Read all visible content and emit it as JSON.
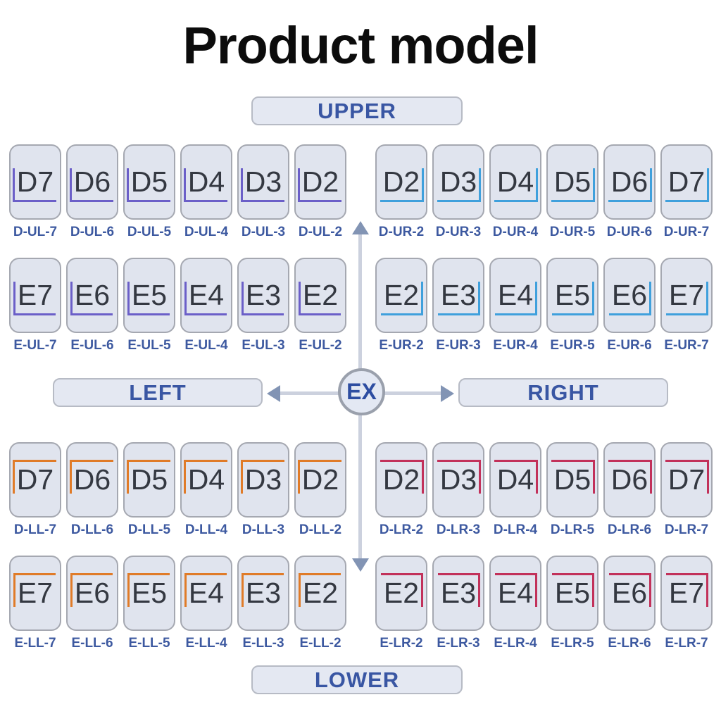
{
  "title": "Product model",
  "center": {
    "label": "EX"
  },
  "direction_labels": {
    "upper": "UPPER",
    "lower": "LOWER",
    "left": "LEFT",
    "right": "RIGHT"
  },
  "colors": {
    "bracket_upper_left": "#6b5fc8",
    "bracket_upper_right": "#3fa0dc",
    "bracket_lower_left": "#e07b28",
    "bracket_lower_right": "#c2315a",
    "label_blue": "#3d59a0",
    "arrow": "#8294b4"
  },
  "quadrants": [
    {
      "id": "upper-left",
      "bracket_corner": "bottom-left",
      "bracket_color": "#6b5fc8",
      "rows": [
        {
          "cards": [
            {
              "code": "D7",
              "label": "D-UL-7"
            },
            {
              "code": "D6",
              "label": "D-UL-6"
            },
            {
              "code": "D5",
              "label": "D-UL-5"
            },
            {
              "code": "D4",
              "label": "D-UL-4"
            },
            {
              "code": "D3",
              "label": "D-UL-3"
            },
            {
              "code": "D2",
              "label": "D-UL-2"
            }
          ]
        },
        {
          "cards": [
            {
              "code": "E7",
              "label": "E-UL-7"
            },
            {
              "code": "E6",
              "label": "E-UL-6"
            },
            {
              "code": "E5",
              "label": "E-UL-5"
            },
            {
              "code": "E4",
              "label": "E-UL-4"
            },
            {
              "code": "E3",
              "label": "E-UL-3"
            },
            {
              "code": "E2",
              "label": "E-UL-2"
            }
          ]
        }
      ]
    },
    {
      "id": "upper-right",
      "bracket_corner": "bottom-right",
      "bracket_color": "#3fa0dc",
      "rows": [
        {
          "cards": [
            {
              "code": "D2",
              "label": "D-UR-2"
            },
            {
              "code": "D3",
              "label": "D-UR-3"
            },
            {
              "code": "D4",
              "label": "D-UR-4"
            },
            {
              "code": "D5",
              "label": "D-UR-5"
            },
            {
              "code": "D6",
              "label": "D-UR-6"
            },
            {
              "code": "D7",
              "label": "D-UR-7"
            }
          ]
        },
        {
          "cards": [
            {
              "code": "E2",
              "label": "E-UR-2"
            },
            {
              "code": "E3",
              "label": "E-UR-3"
            },
            {
              "code": "E4",
              "label": "E-UR-4"
            },
            {
              "code": "E5",
              "label": "E-UR-5"
            },
            {
              "code": "E6",
              "label": "E-UR-6"
            },
            {
              "code": "E7",
              "label": "E-UR-7"
            }
          ]
        }
      ]
    },
    {
      "id": "lower-left",
      "bracket_corner": "top-left",
      "bracket_color": "#e07b28",
      "rows": [
        {
          "cards": [
            {
              "code": "D7",
              "label": "D-LL-7"
            },
            {
              "code": "D6",
              "label": "D-LL-6"
            },
            {
              "code": "D5",
              "label": "D-LL-5"
            },
            {
              "code": "D4",
              "label": "D-LL-4"
            },
            {
              "code": "D3",
              "label": "D-LL-3"
            },
            {
              "code": "D2",
              "label": "D-LL-2"
            }
          ]
        },
        {
          "cards": [
            {
              "code": "E7",
              "label": "E-LL-7"
            },
            {
              "code": "E6",
              "label": "E-LL-6"
            },
            {
              "code": "E5",
              "label": "E-LL-5"
            },
            {
              "code": "E4",
              "label": "E-LL-4"
            },
            {
              "code": "E3",
              "label": "E-LL-3"
            },
            {
              "code": "E2",
              "label": "E-LL-2"
            }
          ]
        }
      ]
    },
    {
      "id": "lower-right",
      "bracket_corner": "top-right",
      "bracket_color": "#c2315a",
      "rows": [
        {
          "cards": [
            {
              "code": "D2",
              "label": "D-LR-2"
            },
            {
              "code": "D3",
              "label": "D-LR-3"
            },
            {
              "code": "D4",
              "label": "D-LR-4"
            },
            {
              "code": "D5",
              "label": "D-LR-5"
            },
            {
              "code": "D6",
              "label": "D-LR-6"
            },
            {
              "code": "D7",
              "label": "D-LR-7"
            }
          ]
        },
        {
          "cards": [
            {
              "code": "E2",
              "label": "E-LR-2"
            },
            {
              "code": "E3",
              "label": "E-LR-3"
            },
            {
              "code": "E4",
              "label": "E-LR-4"
            },
            {
              "code": "E5",
              "label": "E-LR-5"
            },
            {
              "code": "E6",
              "label": "E-LR-6"
            },
            {
              "code": "E7",
              "label": "E-LR-7"
            }
          ]
        }
      ]
    }
  ]
}
